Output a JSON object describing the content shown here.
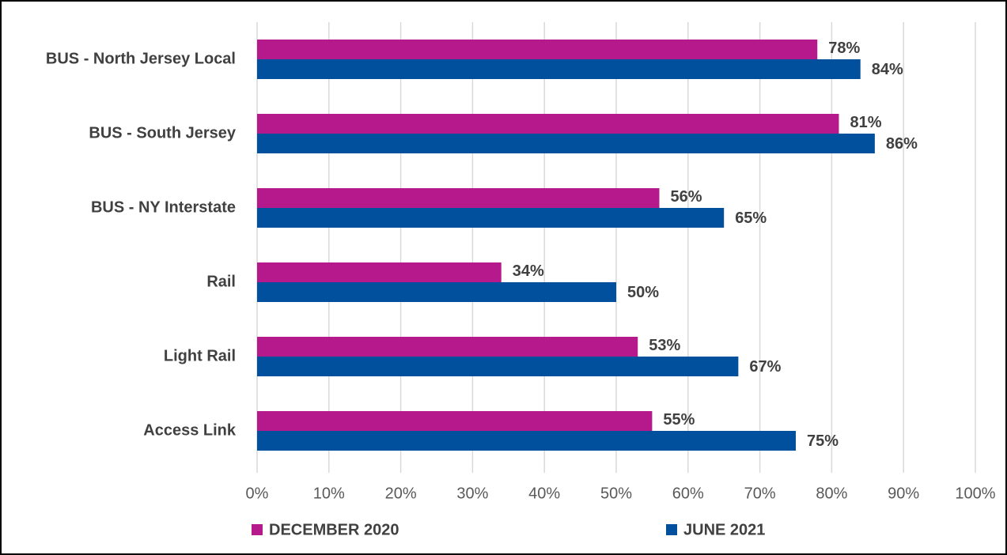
{
  "chart_data": {
    "type": "hbar",
    "categories": [
      "BUS - North Jersey Local",
      "BUS - South Jersey",
      "BUS - NY Interstate",
      "Rail",
      "Light Rail",
      "Access Link"
    ],
    "series": [
      {
        "name": "DECEMBER 2020",
        "color": "#b5198b",
        "values": [
          78,
          81,
          56,
          34,
          53,
          55
        ],
        "value_labels": [
          "78%",
          "81%",
          "56%",
          "34%",
          "53%",
          "55%"
        ]
      },
      {
        "name": "JUNE 2021",
        "color": "#00509e",
        "values": [
          84,
          86,
          65,
          50,
          67,
          75
        ],
        "value_labels": [
          "84%",
          "86%",
          "65%",
          "50%",
          "67%",
          "75%"
        ]
      }
    ],
    "xlim": [
      0,
      100
    ],
    "xticks": [
      {
        "value": 0,
        "label": "0%"
      },
      {
        "value": 10,
        "label": "10%"
      },
      {
        "value": 20,
        "label": "20%"
      },
      {
        "value": 30,
        "label": "30%"
      },
      {
        "value": 40,
        "label": "40%"
      },
      {
        "value": 50,
        "label": "50%"
      },
      {
        "value": 60,
        "label": "60%"
      },
      {
        "value": 70,
        "label": "70%"
      },
      {
        "value": 80,
        "label": "80%"
      },
      {
        "value": 90,
        "label": "90%"
      },
      {
        "value": 100,
        "label": "100%"
      }
    ],
    "grid": true,
    "legend": "bottom"
  }
}
